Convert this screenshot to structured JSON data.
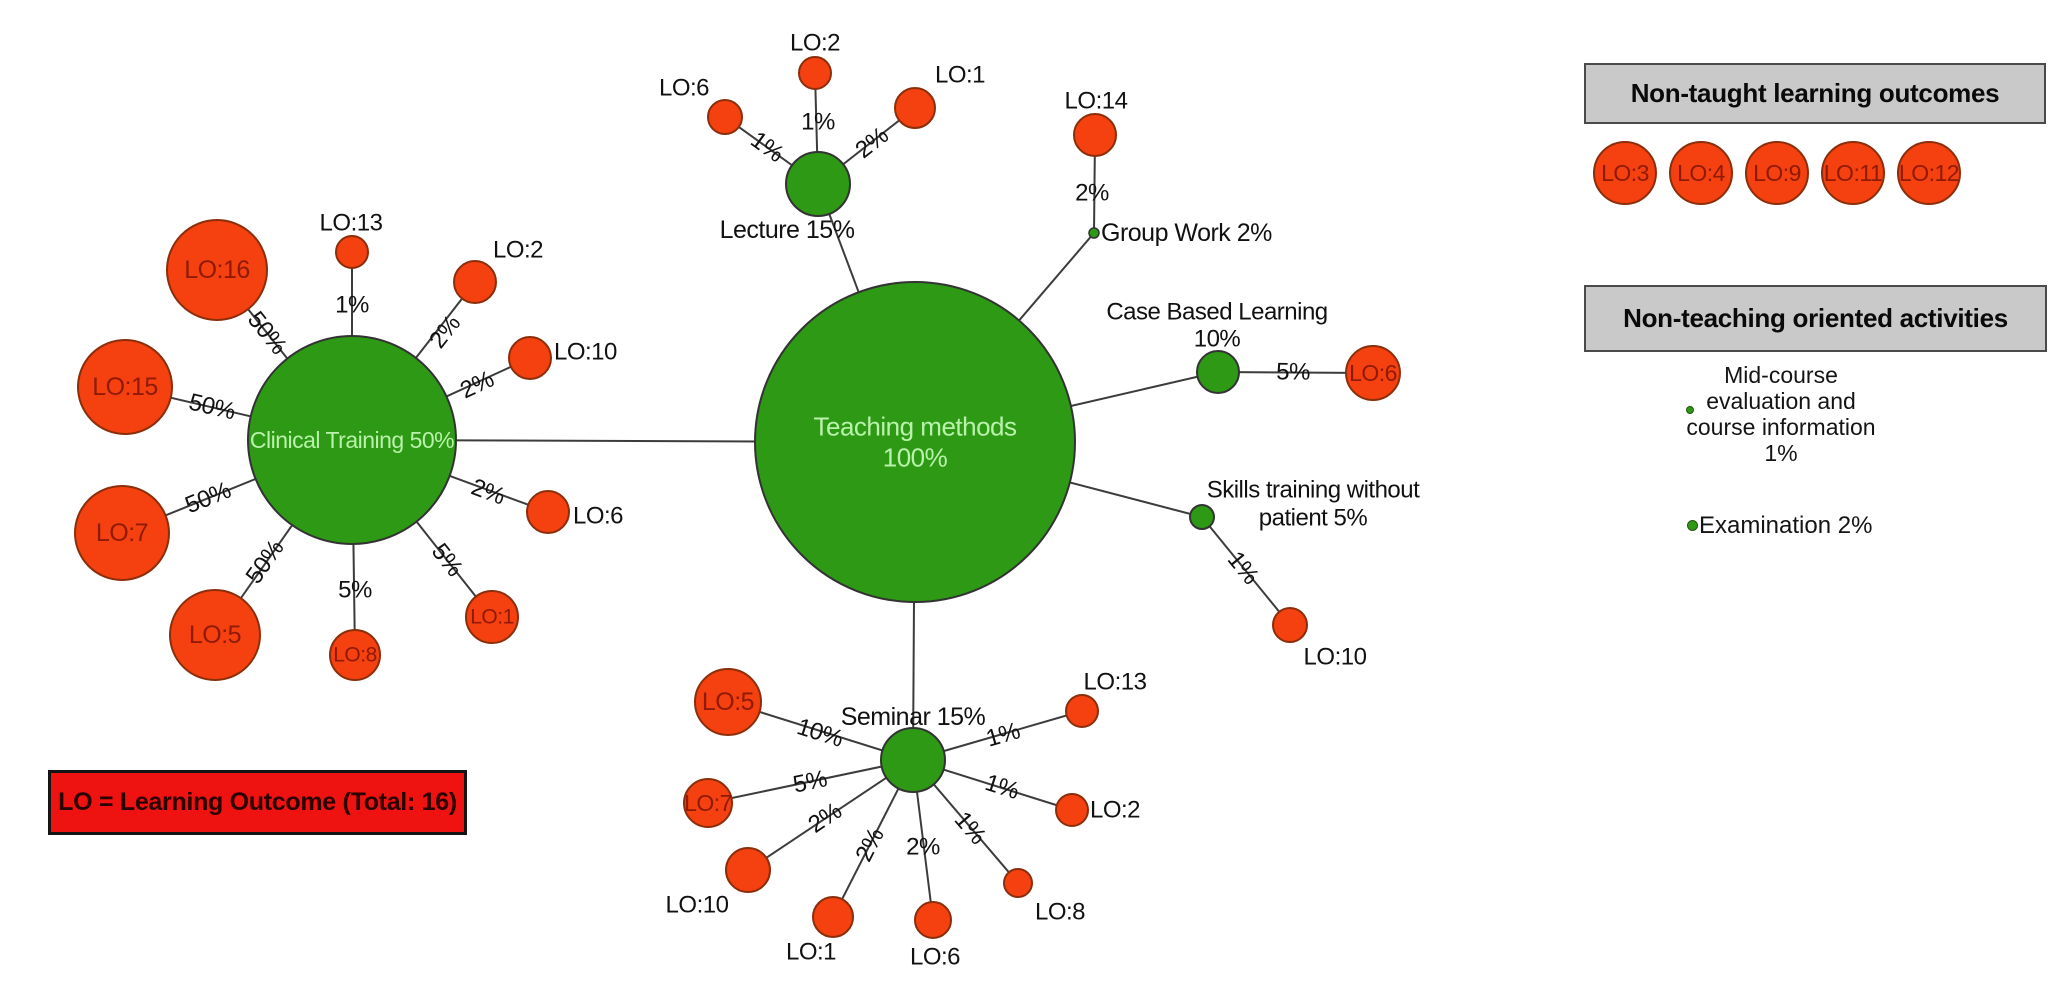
{
  "legend_box": {
    "label": "LO = Learning Outcome (Total: 16)"
  },
  "panels": {
    "non_taught": {
      "title": "Non-taught learning outcomes",
      "outcomes": [
        "LO:3",
        "LO:4",
        "LO:9",
        "LO:11",
        "LO:12"
      ]
    },
    "non_teaching": {
      "title": "Non-teaching oriented activities",
      "activities": [
        {
          "name": "mid-course-evaluation",
          "lines": [
            "Mid-course",
            "evaluation and",
            "course information",
            "1%"
          ]
        },
        {
          "name": "examination",
          "label": "Examination 2%"
        }
      ]
    }
  },
  "colors": {
    "method_green": "#2D9914",
    "method_stroke": "#333333",
    "method_text_light": "#B9F2AA",
    "outcome_red": "#F5400F",
    "outcome_stroke": "#8B2E0B",
    "outcome_text": "#8F1A05",
    "edge": "#3C3C3C",
    "label_text": "#111111",
    "panel_gray": "#C9C9C9",
    "legend_red": "#EE1310"
  },
  "graph": {
    "nodes": [
      {
        "id": "teaching",
        "kind": "method",
        "inside_lines": [
          "Teaching methods",
          "100%"
        ]
      },
      {
        "id": "clinical",
        "kind": "method",
        "inside_lines": [
          "Clinical Training 50%"
        ]
      },
      {
        "id": "lecture",
        "kind": "method",
        "label_lines": [
          "Lecture 15%"
        ]
      },
      {
        "id": "seminar",
        "kind": "method",
        "label_lines": [
          "Seminar 15%"
        ]
      },
      {
        "id": "cbl",
        "kind": "method",
        "label_lines": [
          "Case Based Learning",
          "10%"
        ]
      },
      {
        "id": "groupwork",
        "kind": "method",
        "label_lines": [
          "Group Work 2%"
        ]
      },
      {
        "id": "skills",
        "kind": "method",
        "label_lines": [
          "Skills training without",
          "patient 5%"
        ]
      },
      {
        "id": "c16",
        "kind": "outcome",
        "inside_lines": [
          "LO:16"
        ]
      },
      {
        "id": "c13",
        "kind": "outcome",
        "label_lines": [
          "LO:13"
        ]
      },
      {
        "id": "c2",
        "kind": "outcome",
        "label_lines": [
          "LO:2"
        ]
      },
      {
        "id": "c15",
        "kind": "outcome",
        "inside_lines": [
          "LO:15"
        ]
      },
      {
        "id": "c10",
        "kind": "outcome",
        "label_lines": [
          "LO:10"
        ]
      },
      {
        "id": "c7",
        "kind": "outcome",
        "inside_lines": [
          "LO:7"
        ]
      },
      {
        "id": "c6",
        "kind": "outcome",
        "label_lines": [
          "LO:6"
        ]
      },
      {
        "id": "c5",
        "kind": "outcome",
        "inside_lines": [
          "LO:5"
        ]
      },
      {
        "id": "c8",
        "kind": "outcome",
        "inside_lines": [
          "LO:8"
        ]
      },
      {
        "id": "c1",
        "kind": "outcome",
        "inside_lines": [
          "LO:1"
        ]
      },
      {
        "id": "l6",
        "kind": "outcome",
        "label_lines": [
          "LO:6"
        ]
      },
      {
        "id": "l2",
        "kind": "outcome",
        "label_lines": [
          "LO:2"
        ]
      },
      {
        "id": "l1",
        "kind": "outcome",
        "label_lines": [
          "LO:1"
        ]
      },
      {
        "id": "g14",
        "kind": "outcome",
        "label_lines": [
          "LO:14"
        ]
      },
      {
        "id": "cb6",
        "kind": "outcome",
        "inside_lines": [
          "LO:6"
        ]
      },
      {
        "id": "sk10",
        "kind": "outcome",
        "label_lines": [
          "LO:10"
        ]
      },
      {
        "id": "s5",
        "kind": "outcome",
        "inside_lines": [
          "LO:5"
        ]
      },
      {
        "id": "s7",
        "kind": "outcome",
        "inside_lines": [
          "LO:7"
        ]
      },
      {
        "id": "s10",
        "kind": "outcome",
        "label_lines": [
          "LO:10"
        ]
      },
      {
        "id": "s1",
        "kind": "outcome",
        "label_lines": [
          "LO:1"
        ]
      },
      {
        "id": "s6",
        "kind": "outcome",
        "label_lines": [
          "LO:6"
        ]
      },
      {
        "id": "s8",
        "kind": "outcome",
        "label_lines": [
          "LO:8"
        ]
      },
      {
        "id": "s2",
        "kind": "outcome",
        "label_lines": [
          "LO:2"
        ]
      },
      {
        "id": "s13",
        "kind": "outcome",
        "label_lines": [
          "LO:13"
        ]
      }
    ],
    "edges": [
      {
        "from": "teaching",
        "to": "clinical",
        "label": ""
      },
      {
        "from": "teaching",
        "to": "lecture",
        "label": ""
      },
      {
        "from": "teaching",
        "to": "groupwork",
        "label": ""
      },
      {
        "from": "teaching",
        "to": "cbl",
        "label": ""
      },
      {
        "from": "teaching",
        "to": "skills",
        "label": ""
      },
      {
        "from": "teaching",
        "to": "seminar",
        "label": ""
      },
      {
        "from": "clinical",
        "to": "c16",
        "label": "50%"
      },
      {
        "from": "clinical",
        "to": "c13",
        "label": "1%"
      },
      {
        "from": "clinical",
        "to": "c2",
        "label": "2%"
      },
      {
        "from": "clinical",
        "to": "c15",
        "label": "50%"
      },
      {
        "from": "clinical",
        "to": "c10",
        "label": "2%"
      },
      {
        "from": "clinical",
        "to": "c7",
        "label": "50%"
      },
      {
        "from": "clinical",
        "to": "c6",
        "label": "2%"
      },
      {
        "from": "clinical",
        "to": "c5",
        "label": "50%"
      },
      {
        "from": "clinical",
        "to": "c8",
        "label": "5%"
      },
      {
        "from": "clinical",
        "to": "c1",
        "label": "5%"
      },
      {
        "from": "lecture",
        "to": "l6",
        "label": "1%"
      },
      {
        "from": "lecture",
        "to": "l2",
        "label": "1%"
      },
      {
        "from": "lecture",
        "to": "l1",
        "label": "2%"
      },
      {
        "from": "groupwork",
        "to": "g14",
        "label": "2%"
      },
      {
        "from": "cbl",
        "to": "cb6",
        "label": "5%"
      },
      {
        "from": "skills",
        "to": "sk10",
        "label": "1%"
      },
      {
        "from": "seminar",
        "to": "s5",
        "label": "10%"
      },
      {
        "from": "seminar",
        "to": "s7",
        "label": "5%"
      },
      {
        "from": "seminar",
        "to": "s10",
        "label": "2%"
      },
      {
        "from": "seminar",
        "to": "s1",
        "label": "2%"
      },
      {
        "from": "seminar",
        "to": "s6",
        "label": "2%"
      },
      {
        "from": "seminar",
        "to": "s8",
        "label": "1%"
      },
      {
        "from": "seminar",
        "to": "s2",
        "label": "1%"
      },
      {
        "from": "seminar",
        "to": "s13",
        "label": "1%"
      }
    ]
  }
}
